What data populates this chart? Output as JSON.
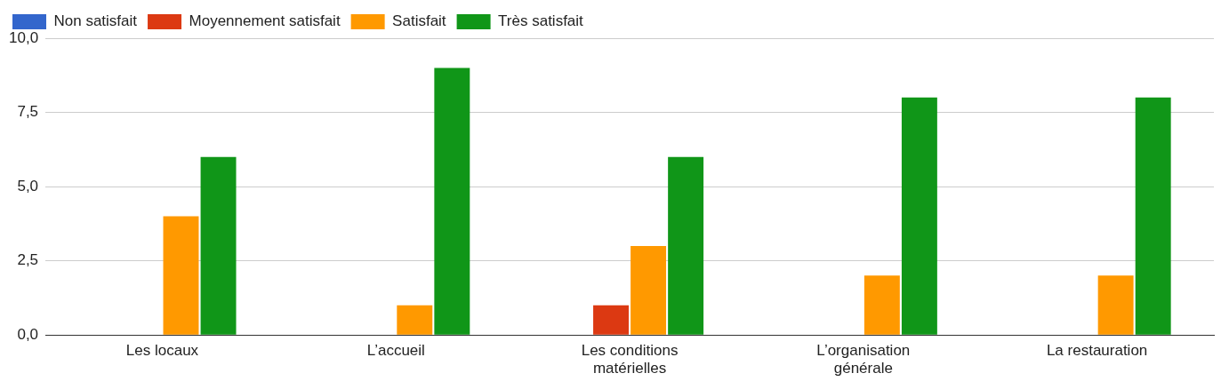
{
  "chart_data": {
    "type": "bar",
    "categories": [
      "Les locaux",
      "L’accueil",
      "Les conditions matérielles",
      "L’organisation générale",
      "La restauration"
    ],
    "series": [
      {
        "name": "Non satisfait",
        "color": "#3366cc",
        "values": [
          0,
          0,
          0,
          0,
          0
        ]
      },
      {
        "name": "Moyennement satisfait",
        "color": "#dc3912",
        "values": [
          0,
          0,
          1,
          0,
          0
        ]
      },
      {
        "name": "Satisfait",
        "color": "#ff9900",
        "values": [
          4,
          1,
          3,
          2,
          2
        ]
      },
      {
        "name": "Très satisfait",
        "color": "#109618",
        "values": [
          6,
          9,
          6,
          8,
          8
        ]
      }
    ],
    "ylim": [
      0,
      10
    ],
    "yticks": [
      {
        "value": 0,
        "label": "0,0"
      },
      {
        "value": 2.5,
        "label": "2,5"
      },
      {
        "value": 5,
        "label": "5,0"
      },
      {
        "value": 7.5,
        "label": "7,5"
      },
      {
        "value": 10,
        "label": "10,0"
      }
    ],
    "grid": "y",
    "legend": "top left"
  }
}
